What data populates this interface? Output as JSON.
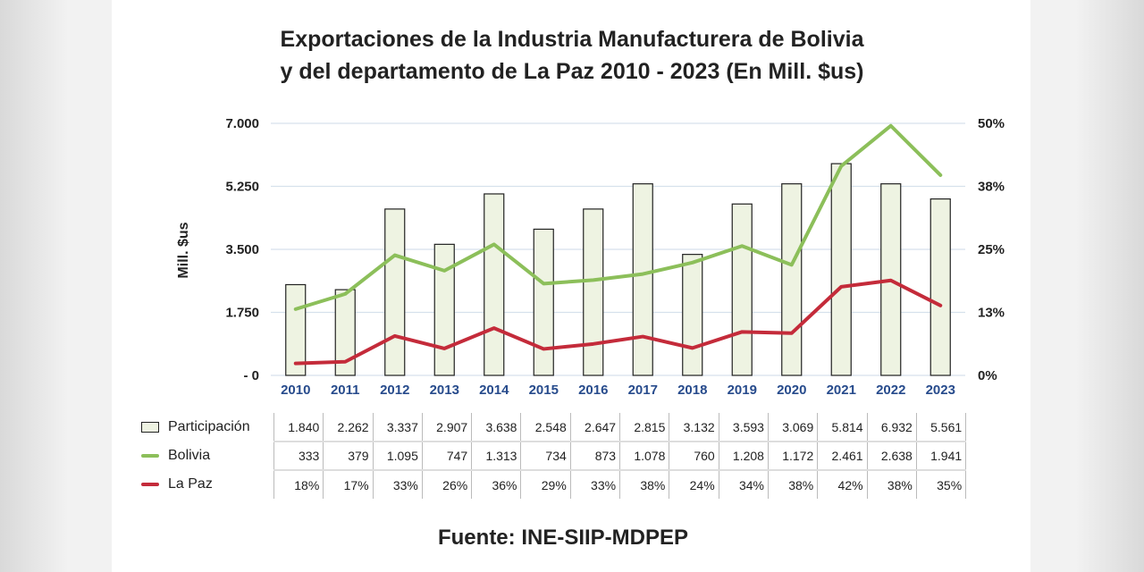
{
  "title_line1": "Exportaciones de la Industria Manufacturera de Bolivia",
  "title_line2": "y del departamento de La Paz  2010 - 2023 (En Mill. $us)",
  "source": "Fuente: INE-SIIP-MDPEP",
  "chart_data": {
    "type": "bar",
    "categories": [
      "2010",
      "2011",
      "2012",
      "2013",
      "2014",
      "2015",
      "2016",
      "2017",
      "2018",
      "2019",
      "2020",
      "2021",
      "2022",
      "2023"
    ],
    "ylabel": "Mill. $us",
    "y_left_ticks": [
      "- 0",
      "1.750",
      "3.500",
      "5.250",
      "7.000"
    ],
    "y_left_range": [
      0,
      7000
    ],
    "y_right_ticks": [
      "0%",
      "13%",
      "25%",
      "38%",
      "50%"
    ],
    "y_right_range": [
      0,
      50
    ],
    "grid": true,
    "legend_position": "bottom-left",
    "series": [
      {
        "name": "Participación",
        "type": "bar",
        "axis": "right",
        "color": "#eef3e2",
        "values": [
          18,
          17,
          33,
          26,
          36,
          29,
          33,
          38,
          24,
          34,
          38,
          42,
          38,
          35
        ]
      },
      {
        "name": "Bolivia",
        "type": "line",
        "axis": "left",
        "color": "#8cbf5a",
        "values": [
          1840,
          2262,
          3337,
          2907,
          3638,
          2548,
          2647,
          2815,
          3132,
          3593,
          3069,
          5814,
          6932,
          5561
        ]
      },
      {
        "name": "La Paz",
        "type": "line",
        "axis": "left",
        "color": "#c42b3a",
        "values": [
          333,
          379,
          1095,
          747,
          1313,
          734,
          873,
          1078,
          760,
          1208,
          1172,
          2461,
          2638,
          1941
        ]
      }
    ],
    "table": {
      "rows": [
        [
          "1.840",
          "2.262",
          "3.337",
          "2.907",
          "3.638",
          "2.548",
          "2.647",
          "2.815",
          "3.132",
          "3.593",
          "3.069",
          "5.814",
          "6.932",
          "5.561"
        ],
        [
          "333",
          "379",
          "1.095",
          "747",
          "1.313",
          "734",
          "873",
          "1.078",
          "760",
          "1.208",
          "1.172",
          "2.461",
          "2.638",
          "1.941"
        ],
        [
          "18%",
          "17%",
          "33%",
          "26%",
          "36%",
          "29%",
          "33%",
          "38%",
          "24%",
          "34%",
          "38%",
          "42%",
          "38%",
          "35%"
        ]
      ]
    }
  }
}
